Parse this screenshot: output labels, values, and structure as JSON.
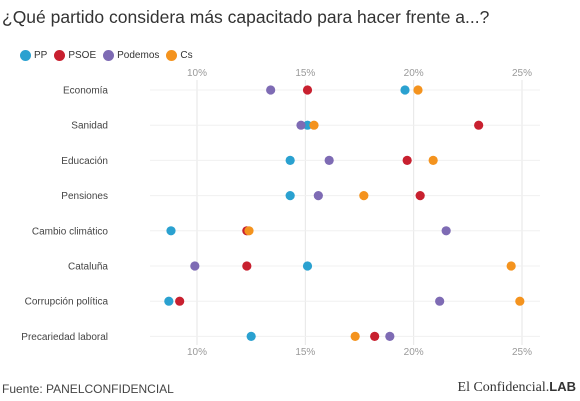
{
  "title": "¿Qué partido considera más capacitado para hacer frente a...?",
  "source": "Fuente: PANELCONFIDENCIAL",
  "brand": {
    "name": "El Confidencial.",
    "suffix": "LAB"
  },
  "chart_data": {
    "type": "scatter",
    "title": "¿Qué partido considera más capacitado para hacer frente a...?",
    "legend_position": "top-left",
    "grid": true,
    "x_axis": {
      "min": 10,
      "max": 25,
      "ticks": [
        10,
        15,
        20,
        25
      ],
      "tick_suffix": "%"
    },
    "categories": [
      "Economía",
      "Sanidad",
      "Educación",
      "Pensiones",
      "Cambio climático",
      "Cataluña",
      "Corrupción política",
      "Precariedad laboral"
    ],
    "series": [
      {
        "name": "PP",
        "color": "#2aa1d0",
        "values": [
          19.6,
          15.1,
          14.3,
          14.3,
          8.8,
          15.1,
          8.7,
          12.5
        ]
      },
      {
        "name": "PSOE",
        "color": "#c8202f",
        "values": [
          15.1,
          23.0,
          19.7,
          20.3,
          12.3,
          12.3,
          9.2,
          18.2
        ]
      },
      {
        "name": "Podemos",
        "color": "#7e6bb4",
        "values": [
          13.4,
          14.8,
          16.1,
          15.6,
          21.5,
          9.9,
          21.2,
          18.9
        ]
      },
      {
        "name": "Cs",
        "color": "#f4931e",
        "values": [
          20.2,
          15.4,
          20.9,
          17.7,
          12.4,
          24.5,
          24.9,
          17.3
        ]
      }
    ]
  }
}
